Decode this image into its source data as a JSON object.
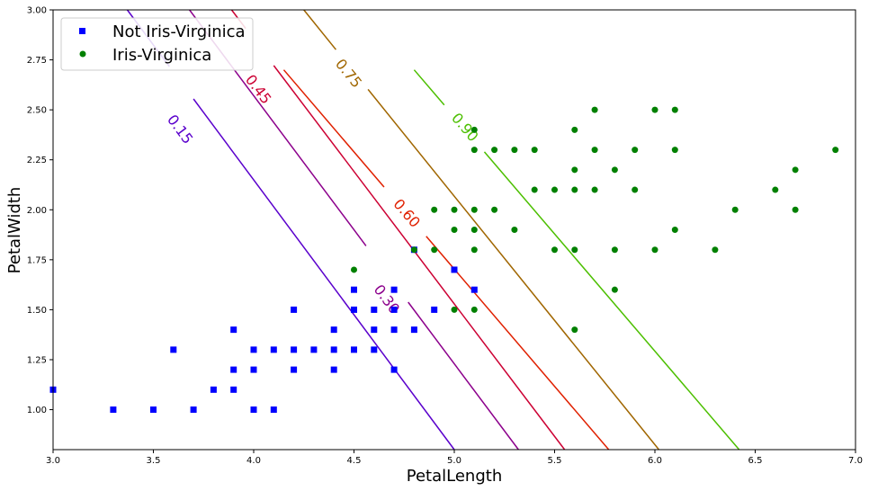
{
  "chart_data": {
    "type": "scatter",
    "xlabel": "PetalLength",
    "ylabel": "PetalWidth",
    "xlim": [
      3.0,
      7.0
    ],
    "ylim": [
      0.8,
      3.0
    ],
    "xticks": [
      "3.0",
      "3.5",
      "4.0",
      "4.5",
      "5.0",
      "5.5",
      "6.0",
      "6.5",
      "7.0"
    ],
    "yticks": [
      "1.00",
      "1.25",
      "1.50",
      "1.75",
      "2.00",
      "2.25",
      "2.50",
      "2.75",
      "3.00"
    ],
    "grid": false,
    "legend_position": "top-left",
    "series": [
      {
        "name": "Not Iris-Virginica",
        "marker": "square",
        "color": "#0000ff",
        "points": [
          [
            3.0,
            1.1
          ],
          [
            3.3,
            1.0
          ],
          [
            3.5,
            1.0
          ],
          [
            3.6,
            1.3
          ],
          [
            3.7,
            1.0
          ],
          [
            3.8,
            1.1
          ],
          [
            3.9,
            1.1
          ],
          [
            3.9,
            1.2
          ],
          [
            3.9,
            1.4
          ],
          [
            4.0,
            1.0
          ],
          [
            4.0,
            1.2
          ],
          [
            4.0,
            1.3
          ],
          [
            4.1,
            1.0
          ],
          [
            4.1,
            1.3
          ],
          [
            4.2,
            1.2
          ],
          [
            4.2,
            1.3
          ],
          [
            4.2,
            1.5
          ],
          [
            4.3,
            1.3
          ],
          [
            4.4,
            1.2
          ],
          [
            4.4,
            1.3
          ],
          [
            4.4,
            1.4
          ],
          [
            4.5,
            1.3
          ],
          [
            4.5,
            1.5
          ],
          [
            4.5,
            1.6
          ],
          [
            4.6,
            1.3
          ],
          [
            4.6,
            1.4
          ],
          [
            4.6,
            1.5
          ],
          [
            4.7,
            1.2
          ],
          [
            4.7,
            1.4
          ],
          [
            4.7,
            1.5
          ],
          [
            4.7,
            1.6
          ],
          [
            4.8,
            1.4
          ],
          [
            4.8,
            1.8
          ],
          [
            4.9,
            1.5
          ],
          [
            5.0,
            1.7
          ],
          [
            5.1,
            1.6
          ]
        ]
      },
      {
        "name": "Iris-Virginica",
        "marker": "circle",
        "color": "#008000",
        "points": [
          [
            4.5,
            1.7
          ],
          [
            4.8,
            1.8
          ],
          [
            4.9,
            1.8
          ],
          [
            4.9,
            2.0
          ],
          [
            5.0,
            1.5
          ],
          [
            5.0,
            1.9
          ],
          [
            5.0,
            2.0
          ],
          [
            5.1,
            1.5
          ],
          [
            5.1,
            1.8
          ],
          [
            5.1,
            1.9
          ],
          [
            5.1,
            2.0
          ],
          [
            5.1,
            2.3
          ],
          [
            5.1,
            2.4
          ],
          [
            5.2,
            2.0
          ],
          [
            5.2,
            2.3
          ],
          [
            5.3,
            1.9
          ],
          [
            5.3,
            2.3
          ],
          [
            5.4,
            2.1
          ],
          [
            5.4,
            2.3
          ],
          [
            5.5,
            1.8
          ],
          [
            5.5,
            2.1
          ],
          [
            5.6,
            1.4
          ],
          [
            5.6,
            1.8
          ],
          [
            5.6,
            2.1
          ],
          [
            5.6,
            2.2
          ],
          [
            5.6,
            2.4
          ],
          [
            5.7,
            2.1
          ],
          [
            5.7,
            2.3
          ],
          [
            5.7,
            2.5
          ],
          [
            5.8,
            1.6
          ],
          [
            5.8,
            1.8
          ],
          [
            5.8,
            2.2
          ],
          [
            5.9,
            2.1
          ],
          [
            5.9,
            2.3
          ],
          [
            6.0,
            1.8
          ],
          [
            6.0,
            2.5
          ],
          [
            6.1,
            1.9
          ],
          [
            6.1,
            2.3
          ],
          [
            6.1,
            2.5
          ],
          [
            6.3,
            1.8
          ],
          [
            6.4,
            2.0
          ],
          [
            6.6,
            2.1
          ],
          [
            6.7,
            2.0
          ],
          [
            6.7,
            2.2
          ],
          [
            6.9,
            2.3
          ]
        ]
      }
    ],
    "decision_contours": [
      {
        "label": "0.15",
        "color": "#5a00cc",
        "p1": [
          3.37,
          3.0
        ],
        "p2": [
          5.0,
          0.8
        ],
        "label_at": [
          3.63,
          2.4
        ],
        "gap": [
          3.58,
          3.7
        ]
      },
      {
        "label": "0.30",
        "color": "#8c008c",
        "p1": [
          3.68,
          3.0
        ],
        "p2": [
          5.32,
          0.8
        ],
        "label_at": [
          4.66,
          1.55
        ],
        "gap": [
          4.56,
          4.77
        ]
      },
      {
        "label": "0.45",
        "color": "#cc0033",
        "p1": [
          3.89,
          3.0
        ],
        "p2": [
          5.55,
          0.8
        ],
        "label_at": [
          4.02,
          2.6
        ],
        "gap": [
          3.96,
          4.1
        ]
      },
      {
        "label": "0.60",
        "color": "#e02000",
        "p1": [
          4.15,
          2.7
        ],
        "p2": [
          5.77,
          0.8
        ],
        "label_at": [
          4.76,
          1.98
        ],
        "gap": [
          4.65,
          4.86
        ]
      },
      {
        "label": "0.75",
        "color": "#a06600",
        "p1": [
          4.25,
          3.0
        ],
        "p2": [
          6.02,
          0.8
        ],
        "label_at": [
          4.47,
          2.68
        ],
        "gap": [
          4.41,
          4.57
        ]
      },
      {
        "label": "0.90",
        "color": "#4cbf00",
        "p1": [
          4.8,
          2.7
        ],
        "p2": [
          6.42,
          0.8
        ],
        "label_at": [
          5.05,
          2.41
        ],
        "gap": [
          4.95,
          5.15
        ]
      }
    ]
  }
}
